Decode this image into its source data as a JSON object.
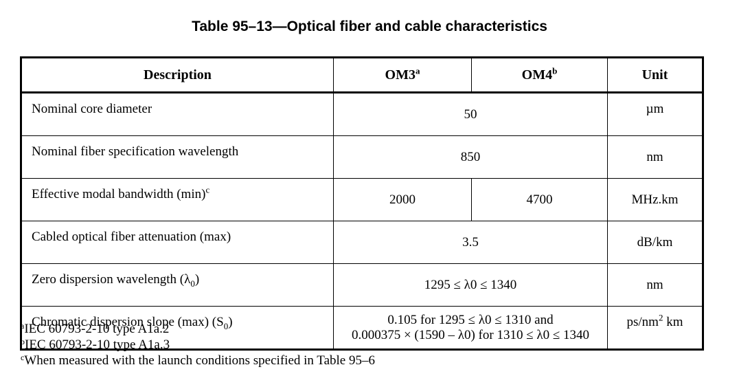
{
  "title": "Table 95–13—Optical fiber and cable characteristics",
  "header": {
    "description": "Description",
    "om3": "OM3",
    "om3_note": "a",
    "om4": "OM4",
    "om4_note": "b",
    "unit": "Unit"
  },
  "rows": [
    {
      "description": "Nominal core diameter",
      "value": "50",
      "unit": "µm"
    },
    {
      "description": "Nominal fiber specification wavelength",
      "value": "850",
      "unit": "nm"
    },
    {
      "description": "Effective modal bandwidth (min)",
      "note": "c",
      "om3_value": "2000",
      "om4_value": "4700",
      "unit": "MHz.km"
    },
    {
      "description": "Cabled optical fiber attenuation (max)",
      "value": "3.5",
      "unit": "dB/km"
    },
    {
      "description": "Zero dispersion wavelength (λ",
      "sub": "0",
      "suffix": ")",
      "value": "1295 ≤ λ0 ≤ 1340",
      "unit": "nm"
    },
    {
      "description": "Chromatic dispersion slope (max) (S",
      "sub": "0",
      "suffix": ")",
      "value_line1": "0.105 for 1295 ≤ λ0 ≤ 1310 and",
      "value_line2": "0.000375 × (1590 – λ0) for 1310 ≤ λ0 ≤ 1340",
      "unit_pre": "ps/nm",
      "unit_sup": "2",
      "unit_post": " km"
    }
  ],
  "footnotes": [
    {
      "mark": "a",
      "text": "IEC 60793-2-10 type A1a.2"
    },
    {
      "mark": "b",
      "text": "IEC 60793-2-10 type A1a.3"
    },
    {
      "mark": "c",
      "text": "When measured with the launch conditions specified in Table 95–6"
    }
  ]
}
